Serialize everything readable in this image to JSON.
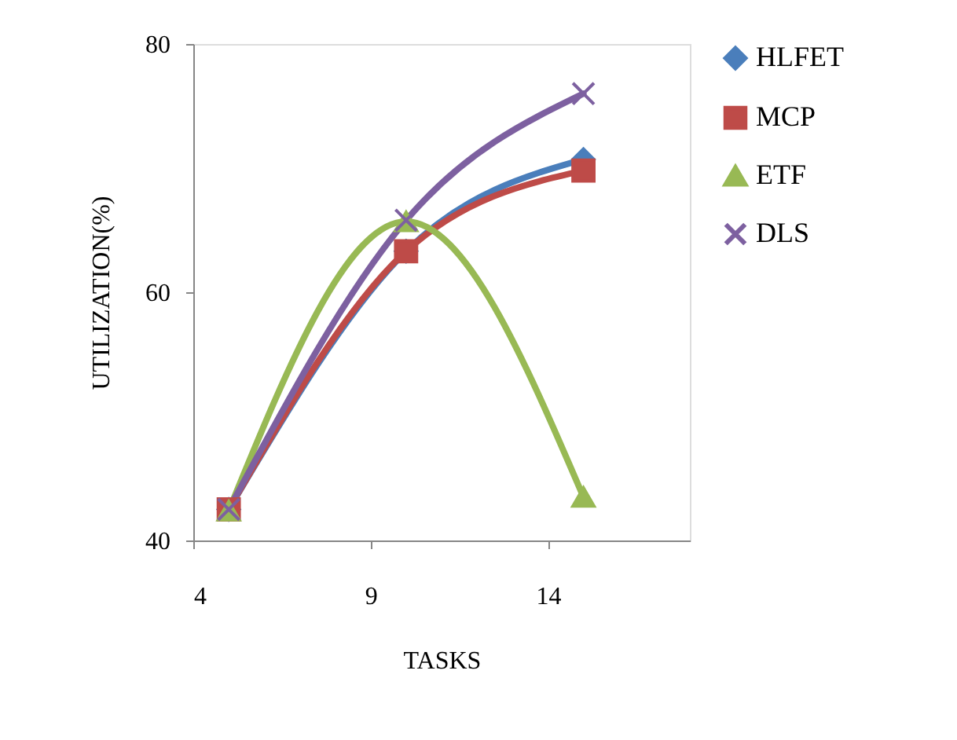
{
  "chart_data": {
    "type": "line",
    "xlabel": "TASKS",
    "ylabel": "UTILIZATION(%)",
    "x": [
      5,
      10,
      15
    ],
    "xlim": [
      4,
      18
    ],
    "xticks": [
      4,
      9,
      14
    ],
    "ylim": [
      40,
      80
    ],
    "yticks": [
      40,
      60,
      80
    ],
    "grid": false,
    "legend": "right",
    "line_style": "solid",
    "series": [
      {
        "name": "HLFET",
        "color": "#4a7ebb",
        "marker": "diamond",
        "values": [
          42.5,
          63.3,
          70.7
        ]
      },
      {
        "name": "MCP",
        "color": "#be4b48",
        "marker": "square",
        "values": [
          42.5,
          63.3,
          69.8
        ]
      },
      {
        "name": "ETF",
        "color": "#98b954",
        "marker": "triangle",
        "values": [
          42.4,
          65.7,
          43.5
        ]
      },
      {
        "name": "DLS",
        "color": "#7d60a0",
        "marker": "cross",
        "values": [
          42.5,
          65.8,
          76.0
        ]
      }
    ]
  }
}
